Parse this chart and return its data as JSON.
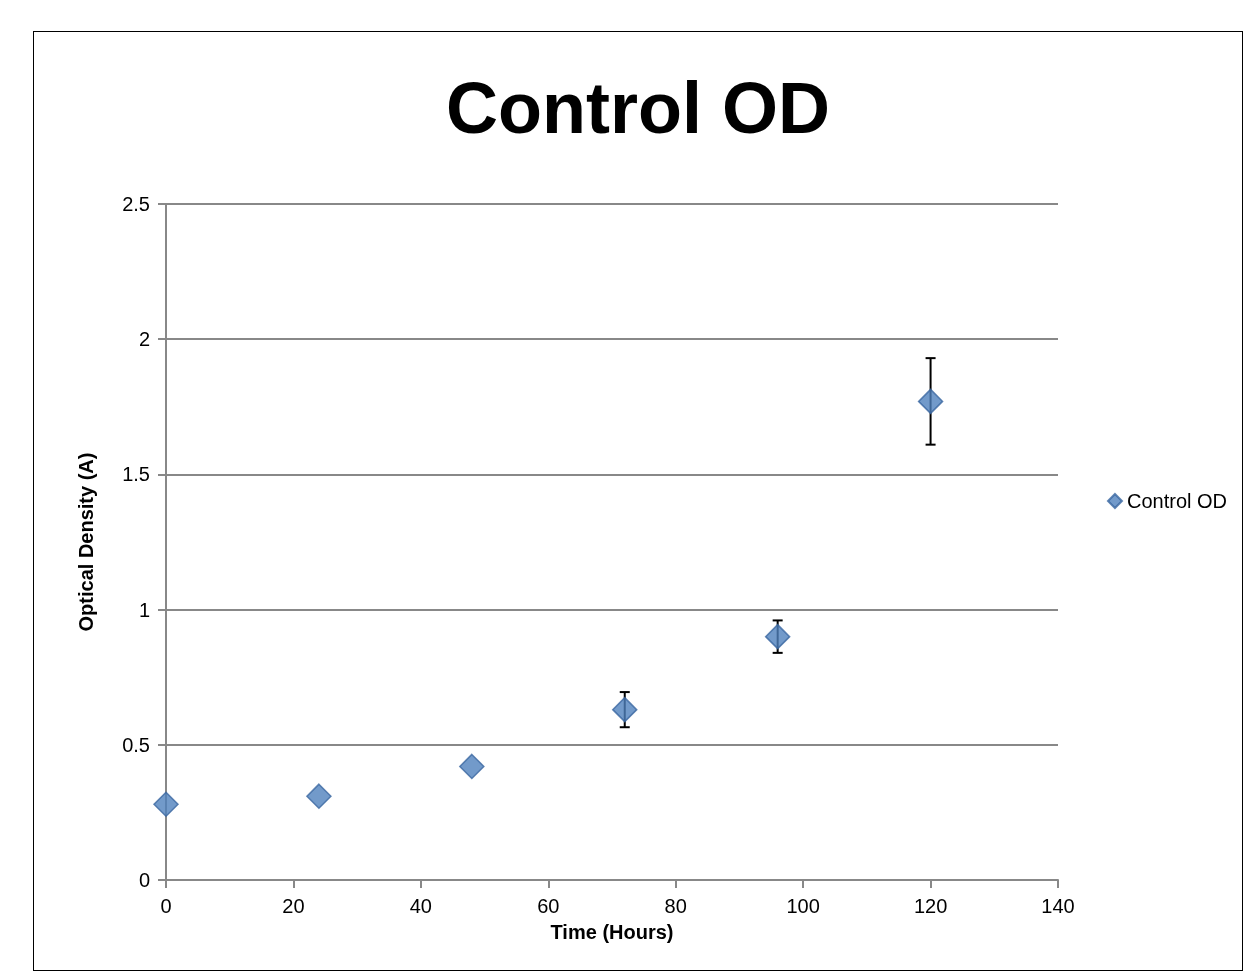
{
  "chart_data": {
    "type": "scatter",
    "title": "Control OD",
    "xlabel": "Time (Hours)",
    "ylabel": "Optical Density (A)",
    "x": [
      0,
      24,
      48,
      72,
      96,
      120
    ],
    "series": [
      {
        "name": "Control OD",
        "color": "#4f81bd",
        "values": [
          0.28,
          0.31,
          0.42,
          0.63,
          0.9,
          1.77
        ],
        "errors": [
          null,
          null,
          null,
          0.065,
          0.06,
          0.16
        ]
      }
    ],
    "xlim": [
      0,
      140
    ],
    "xticks": [
      0,
      20,
      40,
      60,
      80,
      100,
      120,
      140
    ],
    "ylim": [
      0,
      2.5
    ],
    "yticks": [
      0,
      0.5,
      1,
      1.5,
      2,
      2.5
    ],
    "grid": "y",
    "legend": "right",
    "marker": "diamond"
  }
}
